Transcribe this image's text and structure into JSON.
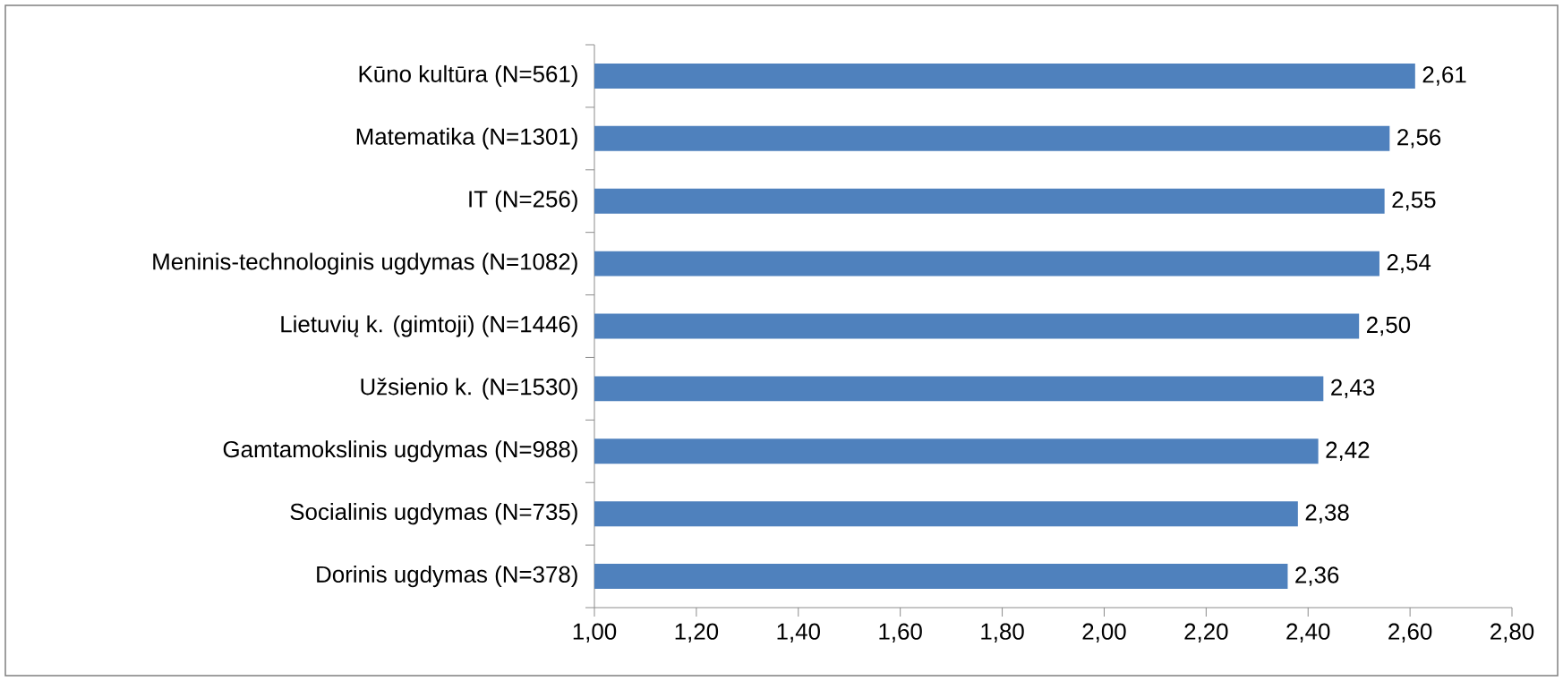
{
  "chart_data": {
    "type": "bar",
    "orientation": "horizontal",
    "categories": [
      "Kūno kultūra (N=561)",
      "Matematika (N=1301)",
      "IT (N=256)",
      "Meninis-technologinis ugdymas (N=1082)",
      "Lietuvių k. (gimtoji) (N=1446)",
      "Užsienio k. (N=1530)",
      "Gamtamokslinis ugdymas (N=988)",
      "Socialinis ugdymas (N=735)",
      "Dorinis ugdymas (N=378)"
    ],
    "values": [
      2.61,
      2.56,
      2.55,
      2.54,
      2.5,
      2.43,
      2.42,
      2.38,
      2.36
    ],
    "value_labels": [
      "2,61",
      "2,56",
      "2,55",
      "2,54",
      "2,50",
      "2,43",
      "2,42",
      "2,38",
      "2,36"
    ],
    "color": "#4f81bd",
    "xlim": [
      1.0,
      2.8
    ],
    "xticks": [
      {
        "value": 1.0,
        "label": "1,00"
      },
      {
        "value": 1.2,
        "label": "1,20"
      },
      {
        "value": 1.4,
        "label": "1,40"
      },
      {
        "value": 1.6,
        "label": "1,60"
      },
      {
        "value": 1.8,
        "label": "1,80"
      },
      {
        "value": 2.0,
        "label": "2,00"
      },
      {
        "value": 2.2,
        "label": "2,20"
      },
      {
        "value": 2.4,
        "label": "2,40"
      },
      {
        "value": 2.6,
        "label": "2,60"
      },
      {
        "value": 2.8,
        "label": "2,80"
      }
    ],
    "grid": false
  }
}
